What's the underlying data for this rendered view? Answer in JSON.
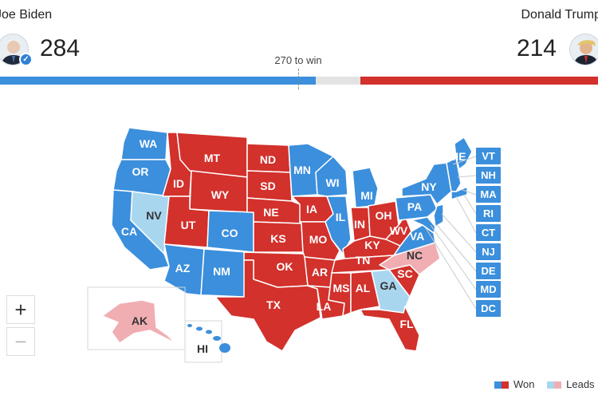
{
  "header": {
    "biden": {
      "name": "Joe Biden",
      "votes": "284"
    },
    "trump": {
      "name": "Donald Trump",
      "votes": "214"
    },
    "threshold_label": "270 to win"
  },
  "colors": {
    "dem_won": "#3b8fdc",
    "dem_leads": "#a9d6ef",
    "rep_won": "#d2312c",
    "rep_leads": "#f0aeb3"
  },
  "states": {
    "WA": "WA",
    "OR": "OR",
    "CA": "CA",
    "NV": "NV",
    "ID": "ID",
    "MT": "MT",
    "WY": "WY",
    "UT": "UT",
    "CO": "CO",
    "AZ": "AZ",
    "NM": "NM",
    "ND": "ND",
    "SD": "SD",
    "NE": "NE",
    "KS": "KS",
    "OK": "OK",
    "TX": "TX",
    "MN": "MN",
    "IA": "IA",
    "MO": "MO",
    "AR": "AR",
    "LA": "LA",
    "WI": "WI",
    "IL": "IL",
    "MI": "MI",
    "IN": "IN",
    "OH": "OH",
    "KY": "KY",
    "TN": "TN",
    "MS": "MS",
    "AL": "AL",
    "GA": "GA",
    "FL": "FL",
    "SC": "SC",
    "NC": "NC",
    "VA": "VA",
    "WV": "WV",
    "PA": "PA",
    "NY": "NY",
    "ME": "ME",
    "AK": "AK",
    "HI": "HI"
  },
  "callouts": [
    "VT",
    "NH",
    "MA",
    "RI",
    "CT",
    "NJ",
    "DE",
    "MD",
    "DC"
  ],
  "controls": {
    "zoom_in": "+",
    "zoom_out": "−"
  },
  "legend": {
    "won": "Won",
    "leads": "Leads"
  }
}
